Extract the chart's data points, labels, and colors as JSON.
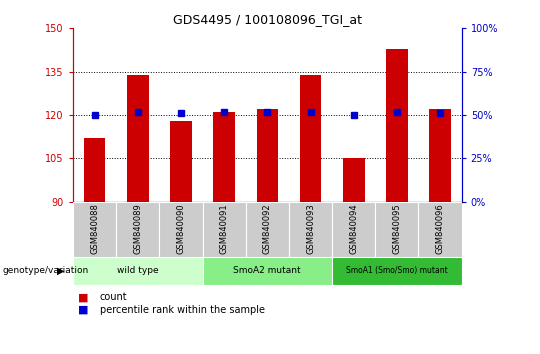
{
  "title": "GDS4495 / 100108096_TGI_at",
  "categories": [
    "GSM840088",
    "GSM840089",
    "GSM840090",
    "GSM840091",
    "GSM840092",
    "GSM840093",
    "GSM840094",
    "GSM840095",
    "GSM840096"
  ],
  "red_values": [
    112,
    134,
    118,
    121,
    122,
    134,
    105,
    143,
    122
  ],
  "blue_percentiles": [
    50,
    52,
    51,
    52,
    52,
    52,
    50,
    52,
    51
  ],
  "ylim_left": [
    90,
    150
  ],
  "ylim_right": [
    0,
    100
  ],
  "yticks_left": [
    90,
    105,
    120,
    135,
    150
  ],
  "yticks_right": [
    0,
    25,
    50,
    75,
    100
  ],
  "groups": [
    {
      "label": "wild type",
      "start": 0,
      "end": 3,
      "color": "#ccffcc"
    },
    {
      "label": "SmoA2 mutant",
      "start": 3,
      "end": 6,
      "color": "#88ee88"
    },
    {
      "label": "SmoA1 (Smo/Smo) mutant",
      "start": 6,
      "end": 9,
      "color": "#33bb33"
    }
  ],
  "bar_color": "#cc0000",
  "blue_color": "#0000cc",
  "red_axis_color": "#cc0000",
  "blue_axis_color": "#0000cc",
  "grid_color": "#000000",
  "bar_width": 0.5,
  "label_box_color": "#cccccc",
  "genotype_label": "genotype/variation",
  "legend_count_label": "count",
  "legend_pct_label": "percentile rank within the sample"
}
